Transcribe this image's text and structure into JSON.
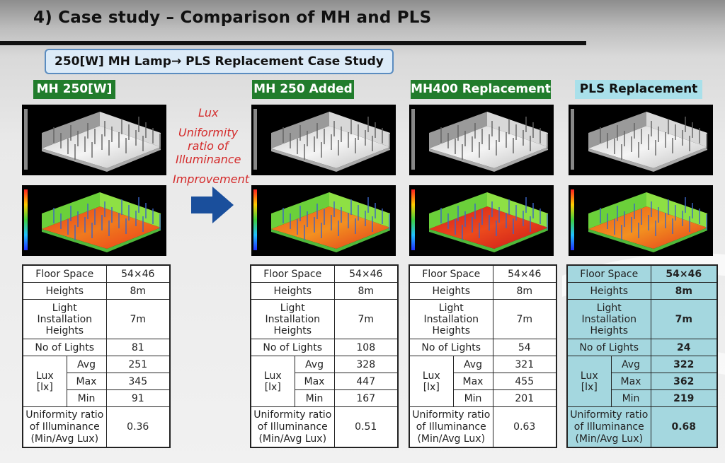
{
  "title": "4) Case study – Comparison of MH and PLS",
  "subtitle": "250[W] MH Lamp→ PLS Replacement Case Study",
  "annotation": {
    "line1": "Lux",
    "line2": "Uniformity",
    "line3": "ratio of",
    "line4": "Illuminance",
    "line5": "Improvement"
  },
  "colors": {
    "green_label": "#217c2c",
    "pls_label": "#a9e0ea",
    "pls_table": "#a4d7df",
    "annotation": "#d42a2a",
    "arrow": "#1a4f9c"
  },
  "row_labels": {
    "floor_space": "Floor Space",
    "heights": "Heights",
    "install_1": "Light",
    "install_2": "Installation",
    "install_3": "Heights",
    "no_lights": "No of Lights",
    "lux_1": "Lux",
    "lux_2": "[lx]",
    "avg": "Avg",
    "max": "Max",
    "min": "Min",
    "uni_1": "Uniformity ratio",
    "uni_2": "of Illuminance",
    "uni_3": "(Min/Avg Lux)"
  },
  "cases": [
    {
      "label": "MH 250[W]",
      "floor_space": "54×46",
      "heights": "8m",
      "install": "7m",
      "lights": "81",
      "avg": "251",
      "max": "345",
      "min": "91",
      "uniformity": "0.36"
    },
    {
      "label": "MH 250 Added",
      "floor_space": "54×46",
      "heights": "8m",
      "install": "7m",
      "lights": "108",
      "avg": "328",
      "max": "447",
      "min": "167",
      "uniformity": "0.51"
    },
    {
      "label": "MH400 Replacement",
      "floor_space": "54×46",
      "heights": "8m",
      "install": "7m",
      "lights": "54",
      "avg": "321",
      "max": "455",
      "min": "201",
      "uniformity": "0.63"
    },
    {
      "label": "PLS Replacement",
      "floor_space": "54×46",
      "heights": "8m",
      "install": "7m",
      "lights": "24",
      "avg": "322",
      "max": "362",
      "min": "219",
      "uniformity": "0.68"
    }
  ]
}
